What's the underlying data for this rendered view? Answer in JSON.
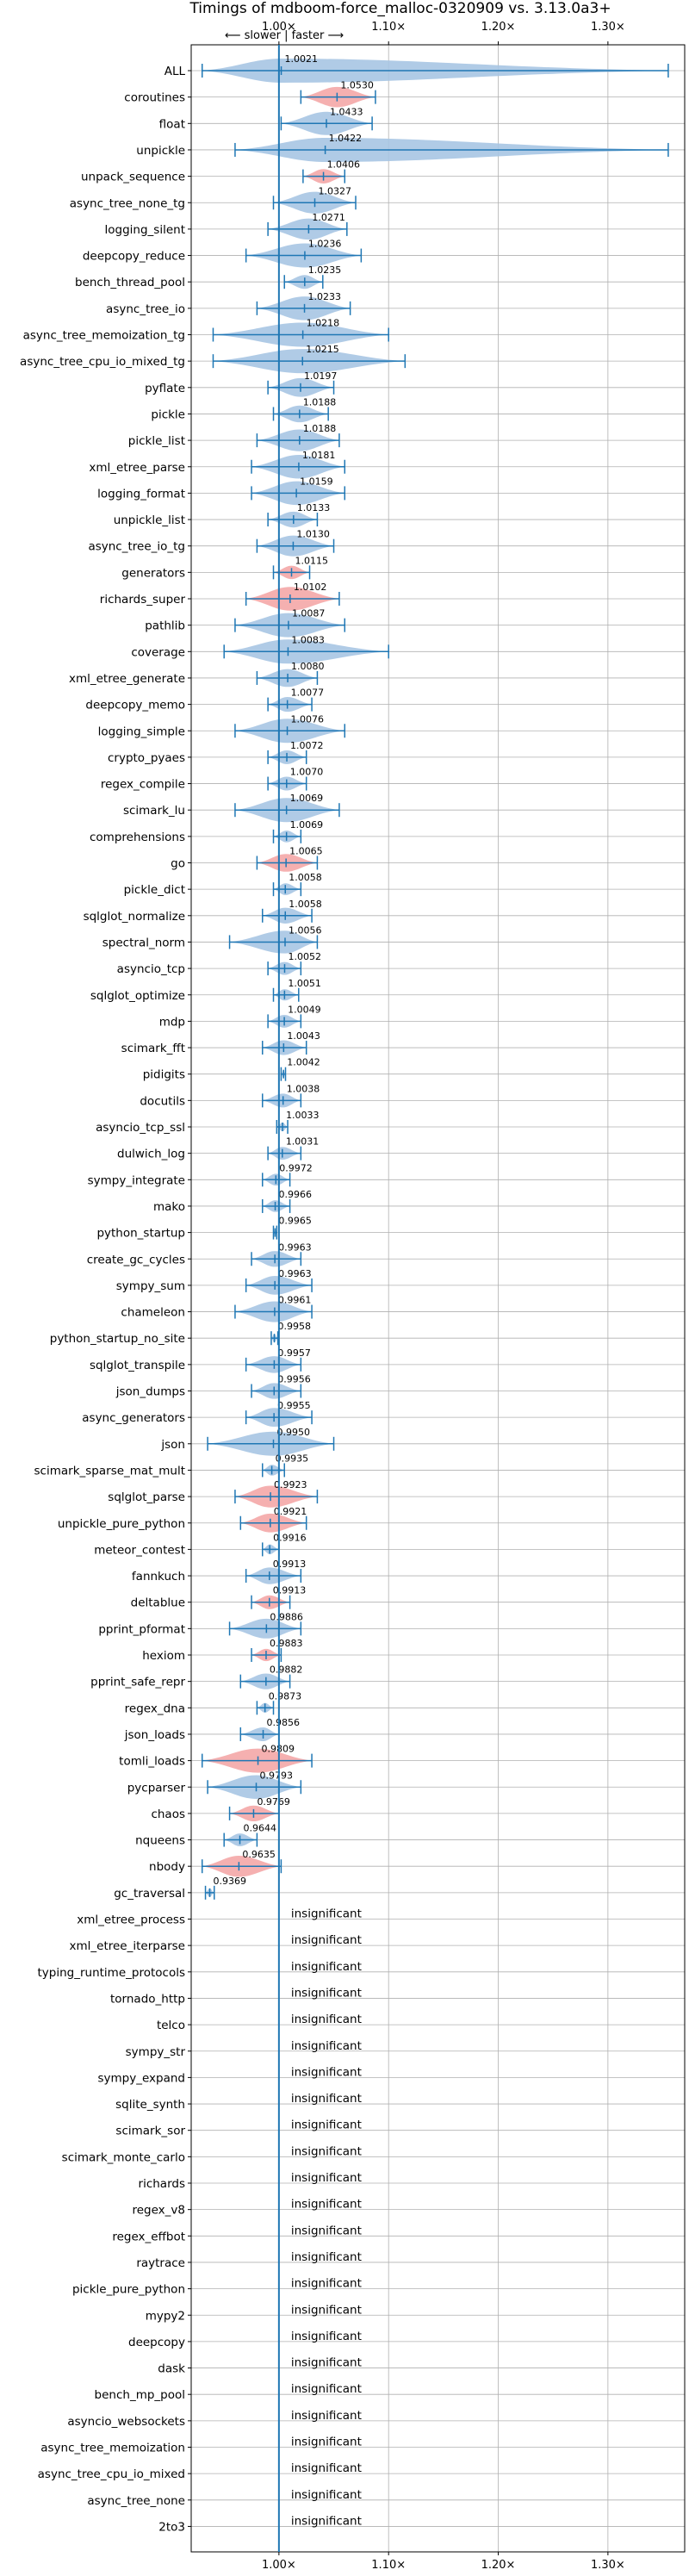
{
  "chart_data": {
    "type": "violin",
    "title": "Timings of mdboom-force_malloc-0320909 vs. 3.13.0a3+",
    "direction_label": "⟵ slower | faster ⟶",
    "xlim": [
      0.92,
      1.37
    ],
    "xticks": [
      1.0,
      1.1,
      1.2,
      1.3
    ],
    "xtick_labels": [
      "1.00×",
      "1.10×",
      "1.20×",
      "1.30×"
    ],
    "grid": true,
    "insignificant_label": "insignificant",
    "colors": {
      "faster": "#a7c5e3",
      "slower": "#f4a7a7",
      "line": "#1f77b4"
    },
    "benchmarks": [
      {
        "name": "ALL",
        "mean": 1.0021,
        "min": 0.93,
        "max": 1.355,
        "label": "1.0021",
        "slower": false
      },
      {
        "name": "coroutines",
        "mean": 1.053,
        "min": 1.02,
        "max": 1.088,
        "label": "1.0530",
        "slower": true
      },
      {
        "name": "float",
        "mean": 1.0433,
        "min": 1.002,
        "max": 1.085,
        "label": "1.0433",
        "slower": false
      },
      {
        "name": "unpickle",
        "mean": 1.0422,
        "min": 0.96,
        "max": 1.355,
        "label": "1.0422",
        "slower": false
      },
      {
        "name": "unpack_sequence",
        "mean": 1.0406,
        "min": 1.022,
        "max": 1.06,
        "label": "1.0406",
        "slower": true
      },
      {
        "name": "async_tree_none_tg",
        "mean": 1.0327,
        "min": 0.995,
        "max": 1.07,
        "label": "1.0327",
        "slower": false
      },
      {
        "name": "logging_silent",
        "mean": 1.0271,
        "min": 0.99,
        "max": 1.062,
        "label": "1.0271",
        "slower": false
      },
      {
        "name": "deepcopy_reduce",
        "mean": 1.0236,
        "min": 0.97,
        "max": 1.075,
        "label": "1.0236",
        "slower": false
      },
      {
        "name": "bench_thread_pool",
        "mean": 1.0235,
        "min": 1.005,
        "max": 1.04,
        "label": "1.0235",
        "slower": false
      },
      {
        "name": "async_tree_io",
        "mean": 1.0233,
        "min": 0.98,
        "max": 1.065,
        "label": "1.0233",
        "slower": false
      },
      {
        "name": "async_tree_memoization_tg",
        "mean": 1.0218,
        "min": 0.94,
        "max": 1.1,
        "label": "1.0218",
        "slower": false
      },
      {
        "name": "async_tree_cpu_io_mixed_tg",
        "mean": 1.0215,
        "min": 0.94,
        "max": 1.115,
        "label": "1.0215",
        "slower": false
      },
      {
        "name": "pyflate",
        "mean": 1.0197,
        "min": 0.99,
        "max": 1.05,
        "label": "1.0197",
        "slower": false
      },
      {
        "name": "pickle",
        "mean": 1.0188,
        "min": 0.995,
        "max": 1.045,
        "label": "1.0188",
        "slower": false
      },
      {
        "name": "pickle_list",
        "mean": 1.0188,
        "min": 0.98,
        "max": 1.055,
        "label": "1.0188",
        "slower": false
      },
      {
        "name": "xml_etree_parse",
        "mean": 1.0181,
        "min": 0.975,
        "max": 1.06,
        "label": "1.0181",
        "slower": false
      },
      {
        "name": "logging_format",
        "mean": 1.0159,
        "min": 0.975,
        "max": 1.06,
        "label": "1.0159",
        "slower": false
      },
      {
        "name": "unpickle_list",
        "mean": 1.0133,
        "min": 0.99,
        "max": 1.035,
        "label": "1.0133",
        "slower": false
      },
      {
        "name": "async_tree_io_tg",
        "mean": 1.013,
        "min": 0.98,
        "max": 1.05,
        "label": "1.0130",
        "slower": false
      },
      {
        "name": "generators",
        "mean": 1.0115,
        "min": 0.995,
        "max": 1.028,
        "label": "1.0115",
        "slower": true
      },
      {
        "name": "richards_super",
        "mean": 1.0102,
        "min": 0.97,
        "max": 1.055,
        "label": "1.0102",
        "slower": true
      },
      {
        "name": "pathlib",
        "mean": 1.0087,
        "min": 0.96,
        "max": 1.06,
        "label": "1.0087",
        "slower": false
      },
      {
        "name": "coverage",
        "mean": 1.0083,
        "min": 0.95,
        "max": 1.1,
        "label": "1.0083",
        "slower": false
      },
      {
        "name": "xml_etree_generate",
        "mean": 1.008,
        "min": 0.98,
        "max": 1.035,
        "label": "1.0080",
        "slower": false
      },
      {
        "name": "deepcopy_memo",
        "mean": 1.0077,
        "min": 0.99,
        "max": 1.03,
        "label": "1.0077",
        "slower": false
      },
      {
        "name": "logging_simple",
        "mean": 1.0076,
        "min": 0.96,
        "max": 1.06,
        "label": "1.0076",
        "slower": false
      },
      {
        "name": "crypto_pyaes",
        "mean": 1.0072,
        "min": 0.99,
        "max": 1.025,
        "label": "1.0072",
        "slower": false
      },
      {
        "name": "regex_compile",
        "mean": 1.007,
        "min": 0.99,
        "max": 1.025,
        "label": "1.0070",
        "slower": false
      },
      {
        "name": "scimark_lu",
        "mean": 1.0069,
        "min": 0.96,
        "max": 1.055,
        "label": "1.0069",
        "slower": false
      },
      {
        "name": "comprehensions",
        "mean": 1.0069,
        "min": 0.995,
        "max": 1.02,
        "label": "1.0069",
        "slower": false
      },
      {
        "name": "go",
        "mean": 1.0065,
        "min": 0.98,
        "max": 1.035,
        "label": "1.0065",
        "slower": true
      },
      {
        "name": "pickle_dict",
        "mean": 1.0058,
        "min": 0.995,
        "max": 1.02,
        "label": "1.0058",
        "slower": false
      },
      {
        "name": "sqlglot_normalize",
        "mean": 1.0058,
        "min": 0.985,
        "max": 1.03,
        "label": "1.0058",
        "slower": false
      },
      {
        "name": "spectral_norm",
        "mean": 1.0056,
        "min": 0.955,
        "max": 1.035,
        "label": "1.0056",
        "slower": false
      },
      {
        "name": "asyncio_tcp",
        "mean": 1.0052,
        "min": 0.99,
        "max": 1.02,
        "label": "1.0052",
        "slower": false
      },
      {
        "name": "sqlglot_optimize",
        "mean": 1.0051,
        "min": 0.995,
        "max": 1.018,
        "label": "1.0051",
        "slower": false
      },
      {
        "name": "mdp",
        "mean": 1.0049,
        "min": 0.99,
        "max": 1.02,
        "label": "1.0049",
        "slower": false
      },
      {
        "name": "scimark_fft",
        "mean": 1.0043,
        "min": 0.985,
        "max": 1.025,
        "label": "1.0043",
        "slower": false
      },
      {
        "name": "pidigits",
        "mean": 1.0042,
        "min": 1.002,
        "max": 1.006,
        "label": "1.0042",
        "slower": false
      },
      {
        "name": "docutils",
        "mean": 1.0038,
        "min": 0.985,
        "max": 1.02,
        "label": "1.0038",
        "slower": false
      },
      {
        "name": "asyncio_tcp_ssl",
        "mean": 1.0033,
        "min": 0.998,
        "max": 1.008,
        "label": "1.0033",
        "slower": false
      },
      {
        "name": "dulwich_log",
        "mean": 1.0031,
        "min": 0.99,
        "max": 1.02,
        "label": "1.0031",
        "slower": false
      },
      {
        "name": "sympy_integrate",
        "mean": 0.9972,
        "min": 0.985,
        "max": 1.01,
        "label": "0.9972",
        "slower": false
      },
      {
        "name": "mako",
        "mean": 0.9966,
        "min": 0.985,
        "max": 1.01,
        "label": "0.9966",
        "slower": false
      },
      {
        "name": "python_startup",
        "mean": 0.9965,
        "min": 0.995,
        "max": 0.998,
        "label": "0.9965",
        "slower": false
      },
      {
        "name": "create_gc_cycles",
        "mean": 0.9963,
        "min": 0.975,
        "max": 1.02,
        "label": "0.9963",
        "slower": false
      },
      {
        "name": "sympy_sum",
        "mean": 0.9963,
        "min": 0.97,
        "max": 1.03,
        "label": "0.9963",
        "slower": false
      },
      {
        "name": "chameleon",
        "mean": 0.9961,
        "min": 0.96,
        "max": 1.03,
        "label": "0.9961",
        "slower": false
      },
      {
        "name": "python_startup_no_site",
        "mean": 0.9958,
        "min": 0.993,
        "max": 0.999,
        "label": "0.9958",
        "slower": false
      },
      {
        "name": "sqlglot_transpile",
        "mean": 0.9957,
        "min": 0.97,
        "max": 1.02,
        "label": "0.9957",
        "slower": false
      },
      {
        "name": "json_dumps",
        "mean": 0.9956,
        "min": 0.975,
        "max": 1.02,
        "label": "0.9956",
        "slower": false
      },
      {
        "name": "async_generators",
        "mean": 0.9955,
        "min": 0.97,
        "max": 1.03,
        "label": "0.9955",
        "slower": false
      },
      {
        "name": "json",
        "mean": 0.995,
        "min": 0.935,
        "max": 1.05,
        "label": "0.9950",
        "slower": false
      },
      {
        "name": "scimark_sparse_mat_mult",
        "mean": 0.9935,
        "min": 0.985,
        "max": 1.005,
        "label": "0.9935",
        "slower": false
      },
      {
        "name": "sqlglot_parse",
        "mean": 0.9923,
        "min": 0.96,
        "max": 1.035,
        "label": "0.9923",
        "slower": true
      },
      {
        "name": "unpickle_pure_python",
        "mean": 0.9921,
        "min": 0.965,
        "max": 1.025,
        "label": "0.9921",
        "slower": true
      },
      {
        "name": "meteor_contest",
        "mean": 0.9916,
        "min": 0.985,
        "max": 1.0,
        "label": "0.9916",
        "slower": false
      },
      {
        "name": "fannkuch",
        "mean": 0.9913,
        "min": 0.97,
        "max": 1.02,
        "label": "0.9913",
        "slower": false
      },
      {
        "name": "deltablue",
        "mean": 0.9913,
        "min": 0.975,
        "max": 1.01,
        "label": "0.9913",
        "slower": true
      },
      {
        "name": "pprint_pformat",
        "mean": 0.9886,
        "min": 0.955,
        "max": 1.02,
        "label": "0.9886",
        "slower": false
      },
      {
        "name": "hexiom",
        "mean": 0.9883,
        "min": 0.975,
        "max": 1.002,
        "label": "0.9883",
        "slower": true
      },
      {
        "name": "pprint_safe_repr",
        "mean": 0.9882,
        "min": 0.965,
        "max": 1.01,
        "label": "0.9882",
        "slower": false
      },
      {
        "name": "regex_dna",
        "mean": 0.9873,
        "min": 0.98,
        "max": 0.995,
        "label": "0.9873",
        "slower": false
      },
      {
        "name": "json_loads",
        "mean": 0.9856,
        "min": 0.965,
        "max": 1.0,
        "label": "0.9856",
        "slower": false
      },
      {
        "name": "tomli_loads",
        "mean": 0.9809,
        "min": 0.93,
        "max": 1.03,
        "label": "0.9809",
        "slower": true
      },
      {
        "name": "pycparser",
        "mean": 0.9793,
        "min": 0.935,
        "max": 1.02,
        "label": "0.9793",
        "slower": false
      },
      {
        "name": "chaos",
        "mean": 0.9769,
        "min": 0.955,
        "max": 1.0,
        "label": "0.9769",
        "slower": true
      },
      {
        "name": "nqueens",
        "mean": 0.9644,
        "min": 0.95,
        "max": 0.98,
        "label": "0.9644",
        "slower": false
      },
      {
        "name": "nbody",
        "mean": 0.9635,
        "min": 0.93,
        "max": 1.002,
        "label": "0.9635",
        "slower": true
      },
      {
        "name": "gc_traversal",
        "mean": 0.9369,
        "min": 0.933,
        "max": 0.941,
        "label": "0.9369",
        "slower": false
      }
    ],
    "insignificant": [
      "xml_etree_process",
      "xml_etree_iterparse",
      "typing_runtime_protocols",
      "tornado_http",
      "telco",
      "sympy_str",
      "sympy_expand",
      "sqlite_synth",
      "scimark_sor",
      "scimark_monte_carlo",
      "richards",
      "regex_v8",
      "regex_effbot",
      "raytrace",
      "pickle_pure_python",
      "mypy2",
      "deepcopy",
      "dask",
      "bench_mp_pool",
      "asyncio_websockets",
      "async_tree_memoization",
      "async_tree_cpu_io_mixed",
      "async_tree_none",
      "2to3"
    ]
  }
}
